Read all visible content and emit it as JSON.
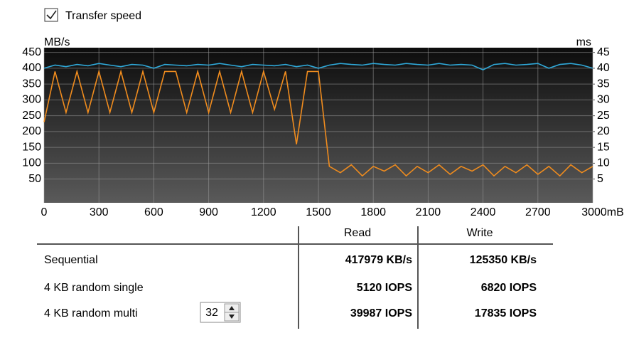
{
  "chart_data": {
    "type": "line",
    "y_label": "MB/s",
    "y2_label": "ms",
    "xlim": [
      0,
      3000
    ],
    "xticks": [
      0,
      300,
      600,
      900,
      1200,
      1500,
      1800,
      2100,
      2400,
      2700,
      {
        "value": 3000,
        "label": "3000mB"
      }
    ],
    "ylim": [
      -25,
      465
    ],
    "yticks": [
      50,
      100,
      150,
      200,
      250,
      300,
      350,
      400,
      450
    ],
    "y2lim": [
      -2.5,
      46.5
    ],
    "y2ticks": [
      5,
      10,
      15,
      20,
      25,
      30,
      35,
      40,
      45
    ],
    "grid": true,
    "x": [
      0,
      60,
      120,
      180,
      240,
      300,
      360,
      420,
      480,
      540,
      600,
      660,
      720,
      780,
      840,
      900,
      960,
      1020,
      1080,
      1140,
      1200,
      1260,
      1320,
      1380,
      1440,
      1500,
      1560,
      1620,
      1680,
      1740,
      1800,
      1860,
      1920,
      1980,
      2040,
      2100,
      2160,
      2220,
      2280,
      2340,
      2400,
      2460,
      2520,
      2580,
      2640,
      2700,
      2760,
      2820,
      2880,
      2940,
      3000
    ],
    "series": [
      {
        "color": "#2fa8d8",
        "values": [
          400,
          410,
          405,
          412,
          408,
          415,
          410,
          405,
          412,
          410,
          400,
          412,
          410,
          408,
          412,
          410,
          415,
          410,
          405,
          412,
          410,
          408,
          412,
          405,
          410,
          400,
          410,
          415,
          412,
          410,
          415,
          412,
          410,
          415,
          412,
          410,
          415,
          410,
          412,
          410,
          395,
          412,
          415,
          410,
          412,
          415,
          400,
          412,
          415,
          410,
          400
        ]
      },
      {
        "color": "#f08c1e",
        "values": [
          230,
          390,
          260,
          390,
          260,
          390,
          260,
          390,
          260,
          390,
          260,
          390,
          390,
          260,
          390,
          260,
          390,
          260,
          390,
          260,
          390,
          270,
          390,
          160,
          390,
          390,
          90,
          70,
          95,
          60,
          90,
          75,
          95,
          60,
          90,
          70,
          95,
          65,
          90,
          75,
          95,
          60,
          90,
          70,
          95,
          65,
          90,
          60,
          95,
          70,
          90
        ]
      }
    ]
  },
  "controls": {
    "checkbox": "Transfer speed",
    "spinner": "32"
  },
  "table": {
    "headers": [
      "Read",
      "Write"
    ],
    "rows": [
      [
        "Sequential",
        "417979 KB/s",
        "125350 KB/s"
      ],
      [
        "4 KB random single",
        "5120 IOPS",
        "6820 IOPS"
      ],
      [
        "4 KB random multi",
        "39987 IOPS",
        "17835 IOPS"
      ]
    ]
  }
}
